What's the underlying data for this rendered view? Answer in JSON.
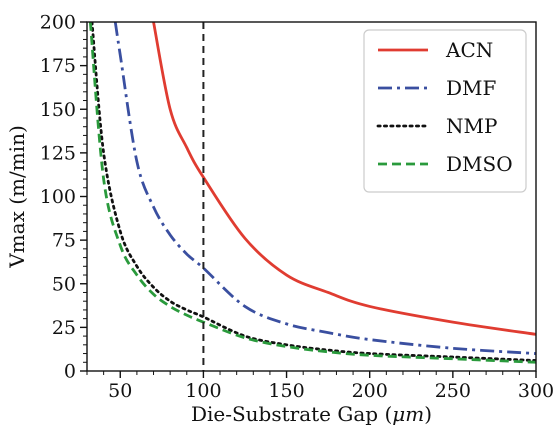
{
  "chart_data": {
    "type": "line",
    "xlabel_prefix": "Die-Substrate Gap (",
    "xlabel_unit": "μm",
    "xlabel_suffix": ")",
    "ylabel": "Vmax (m/min)",
    "xlim": [
      30,
      300
    ],
    "ylim": [
      0,
      200
    ],
    "xticks": [
      50,
      100,
      150,
      200,
      250,
      300
    ],
    "yticks": [
      0,
      25,
      50,
      75,
      100,
      125,
      150,
      175,
      200
    ],
    "grid": false,
    "legend_position": "top-right",
    "vline_x": 100,
    "series": [
      {
        "name": "ACN",
        "color": "#e03c31",
        "style": "solid",
        "x": [
          70,
          80,
          90,
          100,
          125,
          150,
          175,
          200,
          250,
          300
        ],
        "y": [
          200,
          150,
          128,
          111,
          76,
          55,
          45,
          37,
          28,
          21
        ]
      },
      {
        "name": "DMF",
        "color": "#3a4fa0",
        "style": "dashdot",
        "x": [
          47,
          50,
          60,
          70,
          80,
          90,
          100,
          125,
          150,
          175,
          200,
          250,
          300
        ],
        "y": [
          200,
          181,
          120,
          94,
          78,
          67,
          59,
          37,
          27,
          22,
          18,
          13,
          10
        ]
      },
      {
        "name": "NMP",
        "color": "#111111",
        "style": "dotted",
        "x": [
          33,
          40,
          50,
          60,
          70,
          80,
          90,
          100,
          125,
          150,
          175,
          200,
          250,
          300
        ],
        "y": [
          200,
          125,
          80,
          60,
          48,
          40,
          35,
          31,
          20,
          15,
          12,
          10,
          8,
          6
        ]
      },
      {
        "name": "DMSO",
        "color": "#2a9a3c",
        "style": "dashed",
        "x": [
          32,
          40,
          50,
          60,
          70,
          80,
          90,
          100,
          125,
          150,
          175,
          200,
          250,
          300
        ],
        "y": [
          200,
          110,
          72,
          55,
          44,
          37,
          32,
          28,
          19,
          14,
          11,
          9,
          7,
          5
        ]
      }
    ]
  }
}
